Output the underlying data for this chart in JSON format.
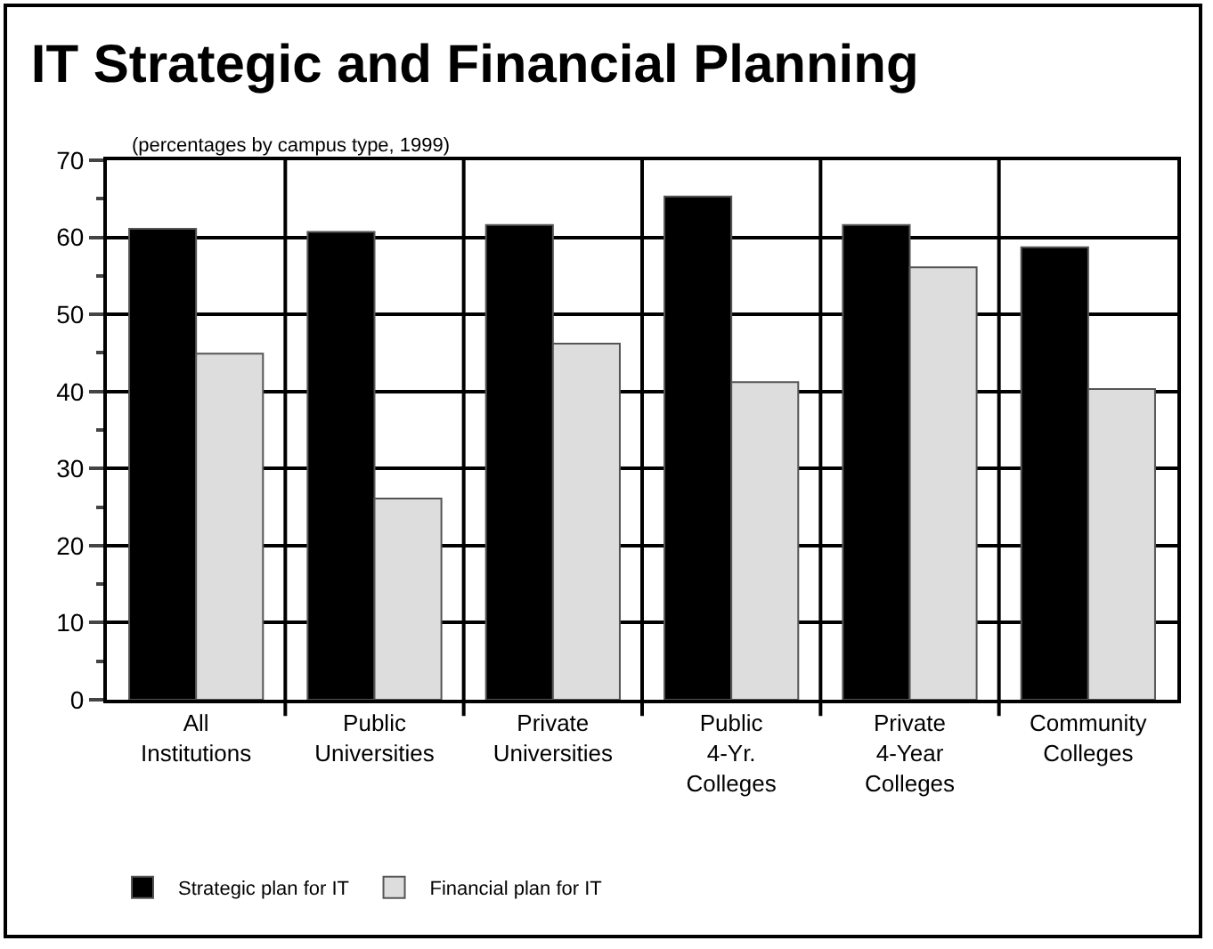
{
  "chart_data": {
    "type": "bar",
    "title": "IT Strategic and Financial Planning",
    "subtitle": "(percentages by campus type, 1999)",
    "categories": [
      "All\nInstitutions",
      "Public\nUniversities",
      "Private\nUniversities",
      "Public\n4-Yr.\nColleges",
      "Private\n4-Year\nColleges",
      "Community\nColleges"
    ],
    "series": [
      {
        "name": "Strategic plan for IT",
        "color": "#000000",
        "values": [
          61.1,
          60.7,
          61.6,
          65.3,
          61.6,
          58.7
        ]
      },
      {
        "name": "Financial plan for IT",
        "color": "#dddddd",
        "values": [
          44.9,
          26.1,
          46.2,
          41.2,
          56.1,
          40.3
        ]
      }
    ],
    "ylim": [
      0,
      70
    ],
    "yticks": [
      0,
      10,
      20,
      30,
      40,
      50,
      60,
      70
    ],
    "grid": true,
    "legend": "bottom left"
  }
}
